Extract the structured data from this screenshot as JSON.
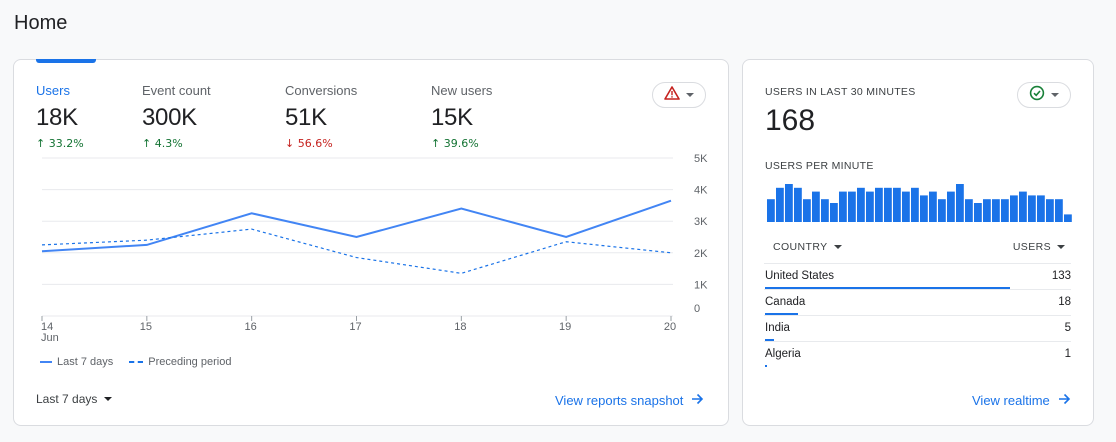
{
  "page": {
    "title": "Home"
  },
  "overview": {
    "metrics": [
      {
        "label": "Users",
        "value": "18K",
        "change": "33.2%",
        "direction": "up",
        "active": true
      },
      {
        "label": "Event count",
        "value": "300K",
        "change": "4.3%",
        "direction": "up",
        "active": false
      },
      {
        "label": "Conversions",
        "value": "51K",
        "change": "56.6%",
        "direction": "down",
        "active": false
      },
      {
        "label": "New users",
        "value": "15K",
        "change": "39.6%",
        "direction": "up",
        "active": false
      }
    ],
    "insight_icon": "warning-icon",
    "date_range_label": "Last 7 days",
    "view_link_label": "View reports snapshot",
    "colors": {
      "accent": "#1a73e8",
      "positive": "#137333",
      "negative": "#c5221f",
      "warning": "#c5221f"
    }
  },
  "chart_data": {
    "type": "line",
    "x": [
      "14",
      "15",
      "16",
      "17",
      "18",
      "19",
      "20"
    ],
    "x_sublabel": "Jun",
    "y_ticks": [
      "0",
      "1K",
      "2K",
      "3K",
      "4K",
      "5K"
    ],
    "ylim": [
      0,
      5000
    ],
    "grid": true,
    "legend_position": "bottom-left",
    "series": [
      {
        "name": "Last 7 days",
        "style": "solid",
        "color": "#4285f4",
        "values": [
          2050,
          2250,
          3250,
          2500,
          3400,
          2500,
          3650
        ]
      },
      {
        "name": "Preceding period",
        "style": "dashed",
        "color": "#1a73e8",
        "values": [
          2250,
          2400,
          2750,
          1850,
          1350,
          2350,
          2000
        ]
      }
    ]
  },
  "realtime": {
    "heading": "USERS IN LAST 30 MINUTES",
    "value": "168",
    "status_icon": "check-circle-icon",
    "per_minute_heading": "USERS PER MINUTE",
    "per_minute": [
      6,
      9,
      10,
      9,
      6,
      8,
      6,
      5,
      8,
      8,
      9,
      8,
      9,
      9,
      9,
      8,
      9,
      7,
      8,
      6,
      8,
      10,
      6,
      5,
      6,
      6,
      6,
      7,
      8,
      7,
      7,
      6,
      6,
      2
    ],
    "per_minute_max": 10,
    "country_label": "COUNTRY",
    "users_label": "USERS",
    "rows": [
      {
        "country": "United States",
        "users": "133",
        "share": 133
      },
      {
        "country": "Canada",
        "users": "18",
        "share": 18
      },
      {
        "country": "India",
        "users": "5",
        "share": 5
      },
      {
        "country": "Algeria",
        "users": "1",
        "share": 1
      }
    ],
    "rows_max": 133,
    "view_link_label": "View realtime",
    "colors": {
      "bars": "#1a73e8",
      "status": "#188038"
    }
  }
}
